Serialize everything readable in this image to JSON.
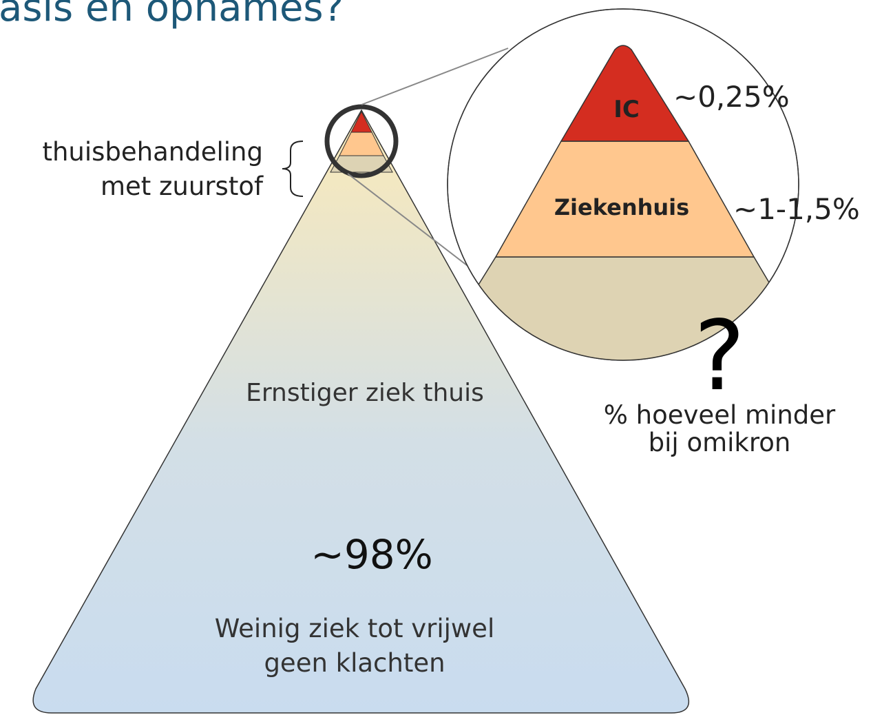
{
  "title": "asis en opnames?",
  "home_treatment": {
    "line1": "thuisbehandeling",
    "line2": "met zuurstof"
  },
  "zoom": {
    "ic": {
      "label": "IC",
      "share": "~0,25%"
    },
    "hospital": {
      "label": "Ziekenhuis",
      "share": "~1-1,5%"
    },
    "question": "?",
    "note": {
      "line1": "% hoeveel minder",
      "line2": "bij omikron"
    }
  },
  "pyramid": {
    "severe_home": "Ernstiger ziek thuis",
    "mild_share": "~98%",
    "mild": {
      "line1": "Weinig ziek tot vrijwel",
      "line2": "geen klachten"
    }
  }
}
